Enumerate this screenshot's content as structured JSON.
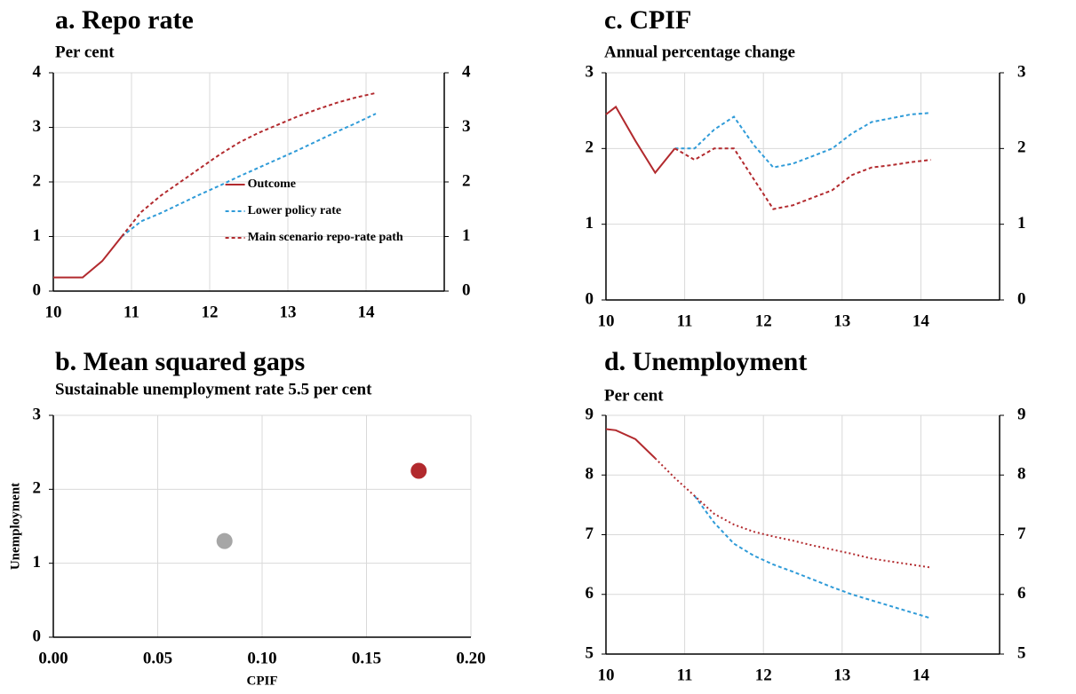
{
  "chart_data": [
    {
      "type": "line",
      "title": "a. Repo rate",
      "subtitle": "Per cent",
      "x": [
        10,
        10.125,
        10.375,
        10.625,
        10.875,
        11.125,
        11.375,
        11.625,
        11.875,
        12.125,
        12.375,
        12.625,
        12.875,
        13.125,
        13.375,
        13.625,
        13.875,
        14.125
      ],
      "series": [
        {
          "name": "Outcome",
          "color": "#b22a2e",
          "style": "solid",
          "values": [
            0.25,
            0.25,
            0.25,
            0.55,
            1.0,
            null,
            null,
            null,
            null,
            null,
            null,
            null,
            null,
            null,
            null,
            null,
            null,
            null
          ]
        },
        {
          "name": "Lower policy rate",
          "color": "#2f9bd8",
          "style": "dashed",
          "values": [
            null,
            null,
            null,
            null,
            1.0,
            1.28,
            1.43,
            1.6,
            1.77,
            1.93,
            2.1,
            2.26,
            2.42,
            2.58,
            2.75,
            2.92,
            3.08,
            3.25
          ]
        },
        {
          "name": "Main scenario repo-rate path",
          "color": "#b22a2e",
          "style": "dashed",
          "values": [
            null,
            null,
            null,
            null,
            1.0,
            1.45,
            1.75,
            2.0,
            2.25,
            2.5,
            2.72,
            2.9,
            3.05,
            3.2,
            3.33,
            3.45,
            3.55,
            3.63
          ]
        }
      ],
      "xlim": [
        10,
        15
      ],
      "xticks": [
        10,
        11,
        12,
        13,
        14
      ],
      "ylim": [
        0,
        4
      ],
      "yticks": [
        0,
        1,
        2,
        3,
        4
      ],
      "y2lim": [
        0,
        4
      ],
      "y2ticks": [
        0,
        1,
        2,
        3,
        4
      ],
      "grid": true,
      "legend": "lower right"
    },
    {
      "type": "scatter",
      "title": "b. Mean squared gaps",
      "subtitle": "Sustainable unemployment rate 5.5 per cent",
      "xlabel": "CPIF",
      "ylabel": "Unemployment",
      "series": [
        {
          "color": "#a6a6a6",
          "x": [
            0.082
          ],
          "values": [
            1.3
          ]
        },
        {
          "color": "#b22a2e",
          "x": [
            0.175
          ],
          "values": [
            2.25
          ]
        }
      ],
      "xlim": [
        0,
        0.2
      ],
      "xticks": [
        {
          "value": 0,
          "label": "0.00"
        },
        {
          "value": 0.05,
          "label": "0.05"
        },
        {
          "value": 0.1,
          "label": "0.10"
        },
        {
          "value": 0.15,
          "label": "0.15"
        },
        {
          "value": 0.2,
          "label": "0.20"
        }
      ],
      "ylim": [
        0,
        3
      ],
      "yticks": [
        0,
        1,
        2,
        3
      ],
      "grid": true
    },
    {
      "type": "line",
      "title": "c. CPIF",
      "subtitle": "Annual percentage change",
      "x": [
        10,
        10.125,
        10.375,
        10.625,
        10.875,
        11.125,
        11.375,
        11.625,
        11.875,
        12.125,
        12.375,
        12.625,
        12.875,
        13.125,
        13.375,
        13.625,
        13.875,
        14.125
      ],
      "series": [
        {
          "color": "#b22a2e",
          "style": "solid",
          "values": [
            2.45,
            2.55,
            2.1,
            1.68,
            2.0,
            null,
            null,
            null,
            null,
            null,
            null,
            null,
            null,
            null,
            null,
            null,
            null,
            null
          ]
        },
        {
          "color": "#2f9bd8",
          "style": "dashed",
          "values": [
            null,
            null,
            null,
            null,
            2.0,
            2.0,
            2.25,
            2.42,
            2.05,
            1.75,
            1.8,
            1.9,
            2.0,
            2.2,
            2.35,
            2.4,
            2.45,
            2.47
          ]
        },
        {
          "color": "#b22a2e",
          "style": "dashed",
          "values": [
            null,
            null,
            null,
            null,
            2.0,
            1.85,
            2.0,
            2.0,
            1.6,
            1.2,
            1.25,
            1.35,
            1.45,
            1.65,
            1.75,
            1.78,
            1.82,
            1.85
          ]
        }
      ],
      "xlim": [
        10,
        15
      ],
      "xticks": [
        10,
        11,
        12,
        13,
        14
      ],
      "ylim": [
        0,
        3
      ],
      "yticks": [
        0,
        1,
        2,
        3
      ],
      "y2lim": [
        0,
        3
      ],
      "y2ticks": [
        0,
        1,
        2,
        3
      ],
      "grid": true
    },
    {
      "type": "line",
      "title": "d. Unemployment",
      "subtitle": "Per cent",
      "x": [
        10,
        10.125,
        10.375,
        10.625,
        10.875,
        11.125,
        11.375,
        11.625,
        11.875,
        12.125,
        12.375,
        12.625,
        12.875,
        13.125,
        13.375,
        13.625,
        13.875,
        14.125
      ],
      "series": [
        {
          "color": "#b22a2e",
          "style": "solid",
          "values": [
            8.77,
            8.75,
            8.6,
            8.28,
            null,
            null,
            null,
            null,
            null,
            null,
            null,
            null,
            null,
            null,
            null,
            null,
            null,
            null
          ]
        },
        {
          "color": "#2f9bd8",
          "style": "dashed",
          "values": [
            null,
            null,
            null,
            null,
            null,
            7.65,
            7.2,
            6.85,
            6.65,
            6.5,
            6.38,
            6.25,
            6.12,
            6.0,
            5.9,
            5.8,
            5.7,
            5.6
          ]
        },
        {
          "color": "#b22a2e",
          "style": "dotted",
          "values": [
            null,
            null,
            null,
            8.28,
            7.95,
            7.65,
            7.35,
            7.17,
            7.05,
            6.97,
            6.9,
            6.82,
            6.75,
            6.68,
            6.6,
            6.55,
            6.5,
            6.45
          ]
        }
      ],
      "xlim": [
        10,
        15
      ],
      "xticks": [
        10,
        11,
        12,
        13,
        14
      ],
      "ylim": [
        5,
        9
      ],
      "yticks": [
        5,
        6,
        7,
        8,
        9
      ],
      "y2lim": [
        5,
        9
      ],
      "y2ticks": [
        5,
        6,
        7,
        8,
        9
      ],
      "grid": true
    }
  ]
}
